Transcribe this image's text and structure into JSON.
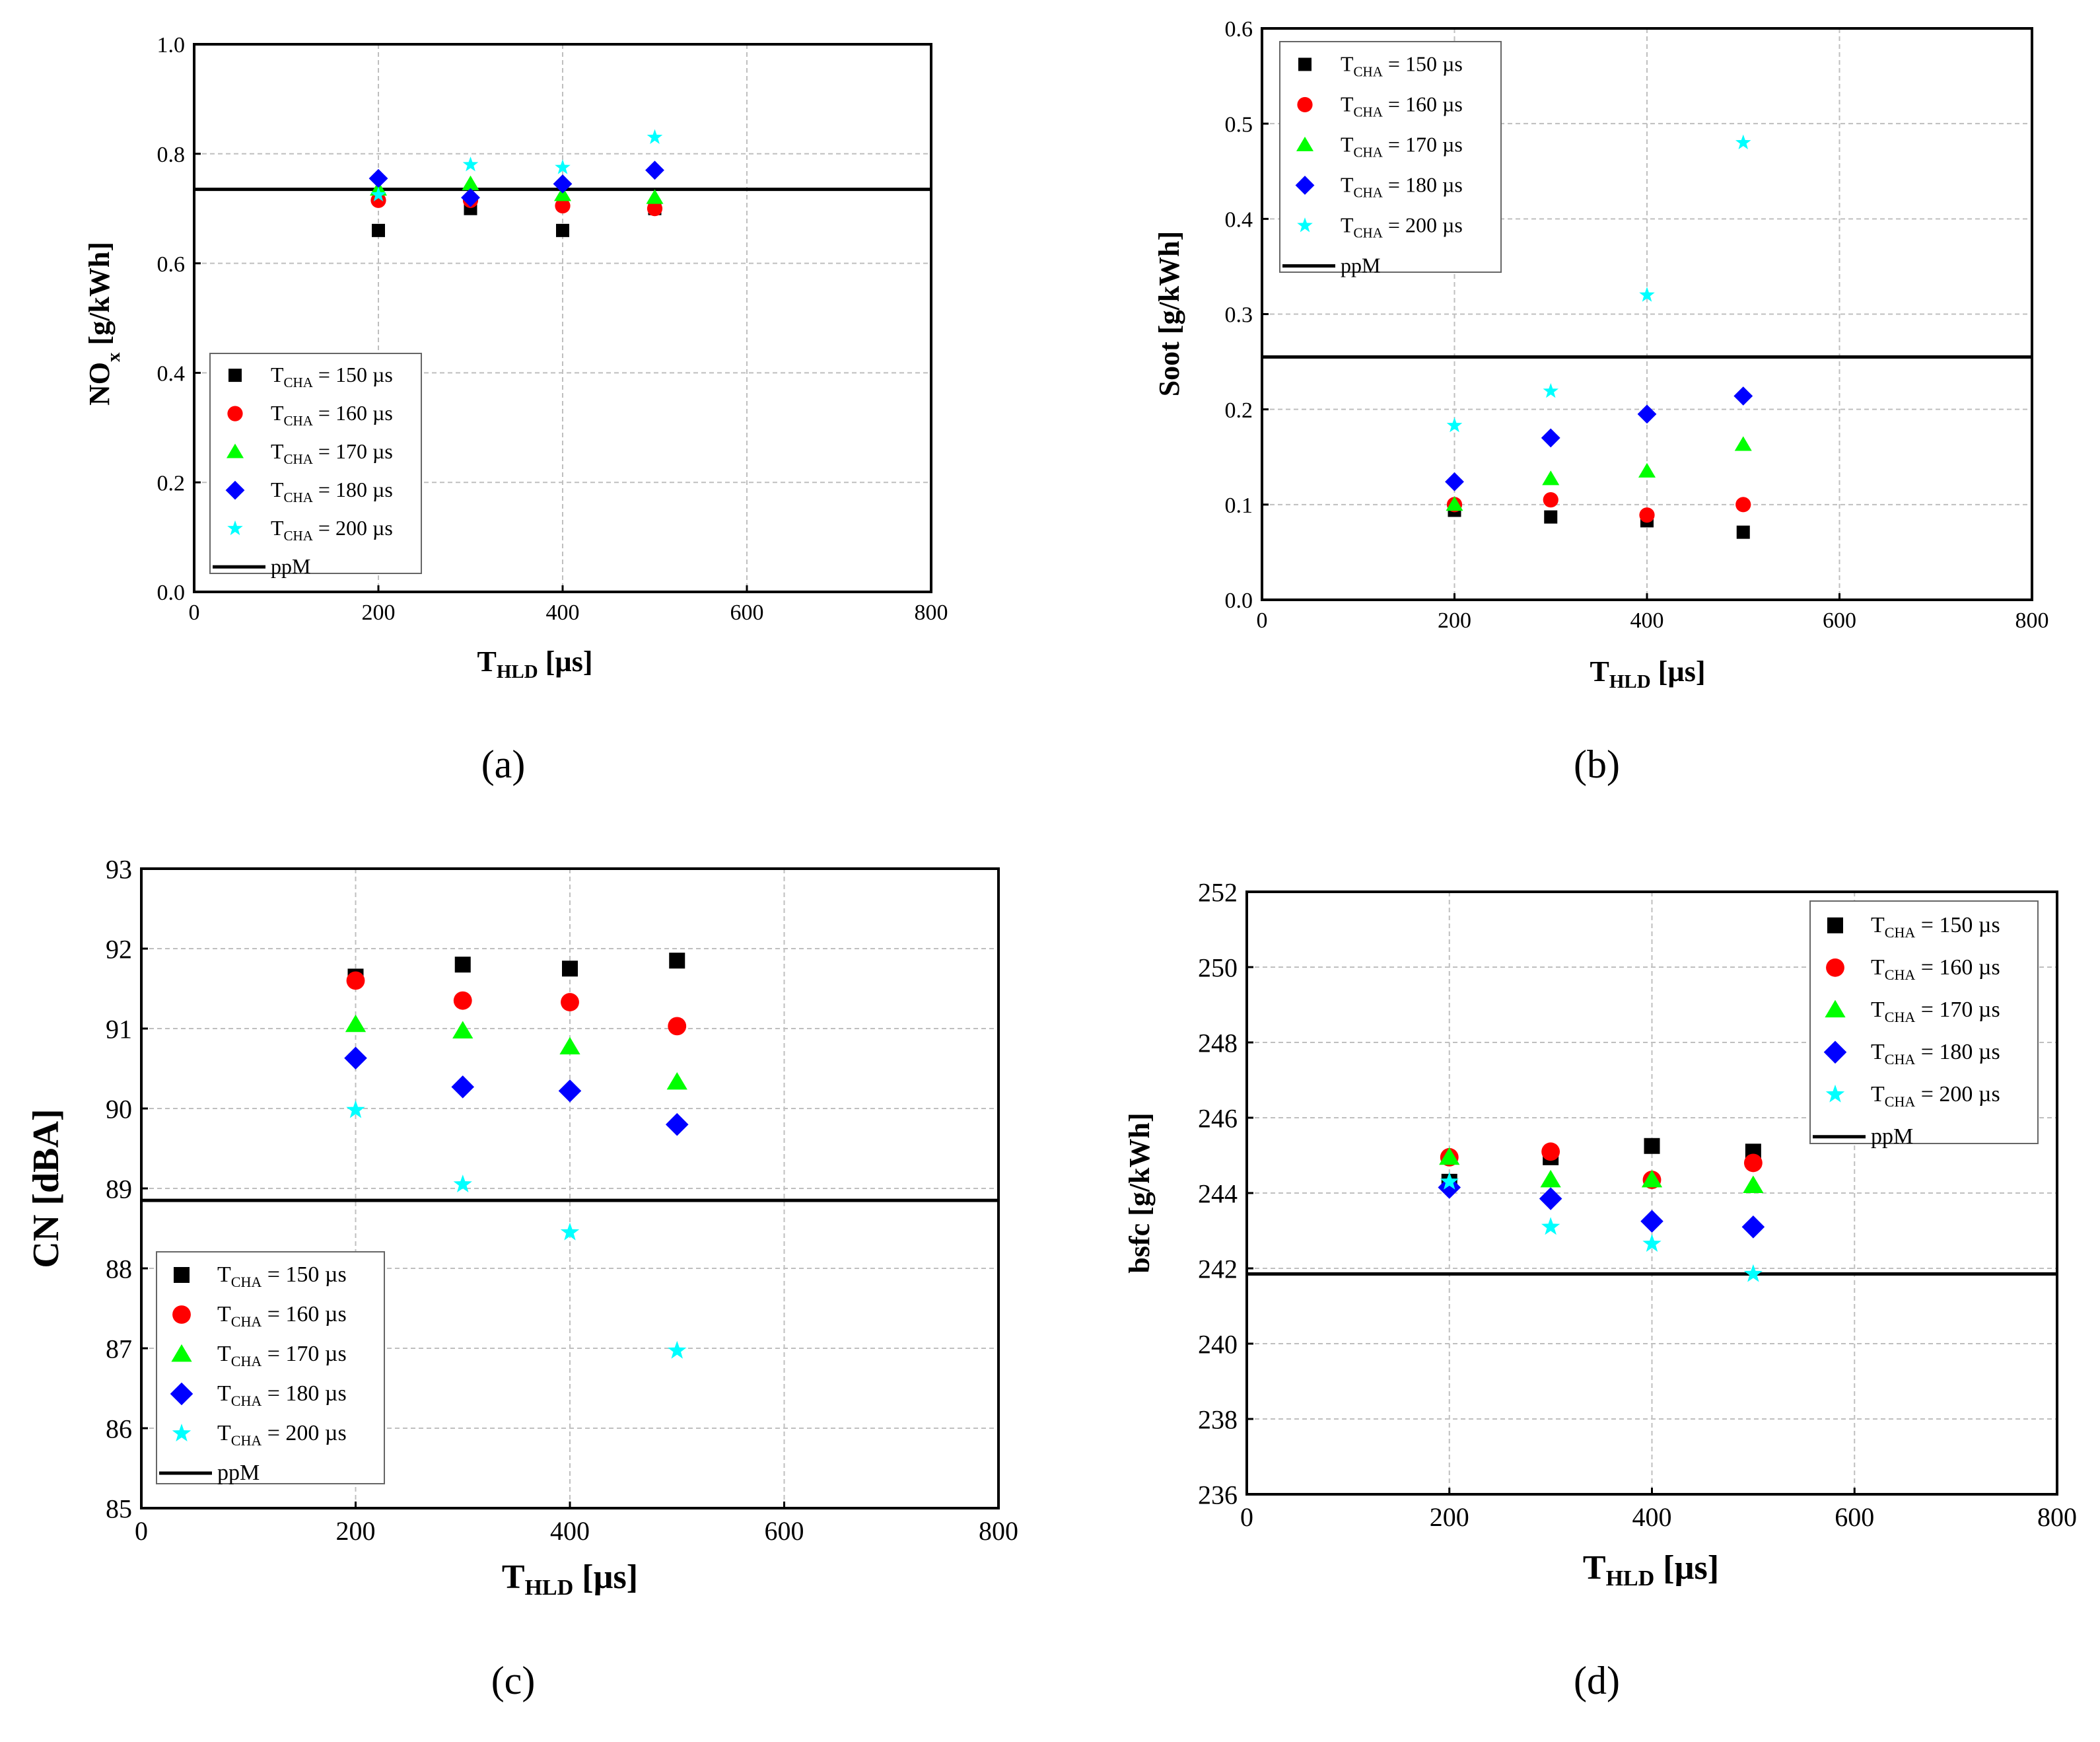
{
  "figure": {
    "legend_entries": [
      {
        "name": "T",
        "sub": "CHA",
        "suffix": " = 150 µs",
        "color": "#000000",
        "marker": "square"
      },
      {
        "name": "T",
        "sub": "CHA",
        "suffix": " = 160 µs",
        "color": "#ff0000",
        "marker": "circle"
      },
      {
        "name": "T",
        "sub": "CHA",
        "suffix": " = 170 µs",
        "color": "#00ff00",
        "marker": "triangle"
      },
      {
        "name": "T",
        "sub": "CHA",
        "suffix": " = 180 µs",
        "color": "#0000ff",
        "marker": "diamond"
      },
      {
        "name": "T",
        "sub": "CHA",
        "suffix": " = 200 µs",
        "color": "#00ffff",
        "marker": "star"
      },
      {
        "name": "ppM",
        "sub": "",
        "suffix": "",
        "color": "#000000",
        "marker": "line"
      }
    ]
  },
  "chart_data": [
    {
      "type": "scatter",
      "caption": "(a)",
      "xlabel": {
        "main": "T",
        "sub": "HLD",
        "rest": " [µs]"
      },
      "ylabel": {
        "main": "NO",
        "sub": "x",
        "rest": " [g/kWh]"
      },
      "xlim": [
        0,
        800
      ],
      "ylim": [
        0,
        1.0
      ],
      "xticks": [
        "0",
        "200",
        "400",
        "600",
        "800"
      ],
      "yticks": [
        "0.0",
        "0.2",
        "0.4",
        "0.6",
        "0.8",
        "1.0"
      ],
      "x": [
        200,
        300,
        400,
        500
      ],
      "series": [
        {
          "name": "TCHA = 150 µs",
          "values": [
            0.66,
            0.7,
            0.66,
            0.7
          ]
        },
        {
          "name": "TCHA = 160 µs",
          "values": [
            0.715,
            0.715,
            0.705,
            0.7
          ]
        },
        {
          "name": "TCHA = 170 µs",
          "values": [
            0.735,
            0.745,
            0.725,
            0.72
          ]
        },
        {
          "name": "TCHA = 180 µs",
          "values": [
            0.755,
            0.72,
            0.745,
            0.77
          ]
        },
        {
          "name": "TCHA = 200 µs",
          "values": [
            0.725,
            0.78,
            0.775,
            0.83
          ]
        }
      ],
      "reference": {
        "name": "ppM",
        "value": 0.735
      },
      "grid": true,
      "legend_position": "bottom-left"
    },
    {
      "type": "scatter",
      "caption": "(b)",
      "xlabel": {
        "main": "T",
        "sub": "HLD",
        "rest": " [µs]"
      },
      "ylabel": {
        "main": "Soot [g/kWh]",
        "sub": "",
        "rest": ""
      },
      "xlim": [
        0,
        800
      ],
      "ylim": [
        0,
        0.6
      ],
      "xticks": [
        "0",
        "200",
        "400",
        "600",
        "800"
      ],
      "yticks": [
        "0.0",
        "0.1",
        "0.2",
        "0.3",
        "0.4",
        "0.5",
        "0.6"
      ],
      "x": [
        200,
        300,
        400,
        500
      ],
      "series": [
        {
          "name": "TCHA = 150 µs",
          "values": [
            0.094,
            0.087,
            0.083,
            0.071
          ]
        },
        {
          "name": "TCHA = 160 µs",
          "values": [
            0.1,
            0.105,
            0.089,
            0.1
          ]
        },
        {
          "name": "TCHA = 170 µs",
          "values": [
            0.1,
            0.127,
            0.135,
            0.163
          ]
        },
        {
          "name": "TCHA = 180 µs",
          "values": [
            0.124,
            0.17,
            0.195,
            0.214
          ]
        },
        {
          "name": "TCHA = 200 µs",
          "values": [
            0.183,
            0.219,
            0.32,
            0.48
          ]
        }
      ],
      "reference": {
        "name": "ppM",
        "value": 0.255
      },
      "grid": true,
      "legend_position": "top-left"
    },
    {
      "type": "scatter",
      "caption": "(c)",
      "xlabel": {
        "main": "T",
        "sub": "HLD",
        "rest": " [µs]"
      },
      "ylabel": {
        "main": "CN [dBA]",
        "sub": "",
        "rest": ""
      },
      "xlim": [
        0,
        800
      ],
      "ylim": [
        85,
        93
      ],
      "xticks": [
        "0",
        "200",
        "400",
        "600",
        "800"
      ],
      "yticks": [
        "85",
        "86",
        "87",
        "88",
        "89",
        "90",
        "91",
        "92",
        "93"
      ],
      "x": [
        200,
        300,
        400,
        500
      ],
      "series": [
        {
          "name": "TCHA = 150 µs",
          "values": [
            91.65,
            91.8,
            91.75,
            91.85
          ]
        },
        {
          "name": "TCHA = 160 µs",
          "values": [
            91.6,
            91.35,
            91.33,
            91.03
          ]
        },
        {
          "name": "TCHA = 170 µs",
          "values": [
            91.05,
            90.97,
            90.77,
            90.33
          ]
        },
        {
          "name": "TCHA = 180 µs",
          "values": [
            90.63,
            90.27,
            90.22,
            89.8
          ]
        },
        {
          "name": "TCHA = 200 µs",
          "values": [
            89.98,
            89.05,
            88.45,
            86.97
          ]
        }
      ],
      "reference": {
        "name": "ppM",
        "value": 88.85
      },
      "grid": true,
      "legend_position": "bottom-left"
    },
    {
      "type": "scatter",
      "caption": "(d)",
      "xlabel": {
        "main": "T",
        "sub": "HLD",
        "rest": " [µs]"
      },
      "ylabel": {
        "main": "bsfc [g/kWh]",
        "sub": "",
        "rest": ""
      },
      "xlim": [
        0,
        800
      ],
      "ylim": [
        236,
        252
      ],
      "xticks": [
        "0",
        "200",
        "400",
        "600",
        "800"
      ],
      "yticks": [
        "236",
        "238",
        "240",
        "242",
        "244",
        "246",
        "248",
        "250",
        "252"
      ],
      "x": [
        200,
        300,
        400,
        500
      ],
      "series": [
        {
          "name": "TCHA = 150 µs",
          "values": [
            244.3,
            244.95,
            245.25,
            245.1
          ]
        },
        {
          "name": "TCHA = 160 µs",
          "values": [
            244.95,
            245.1,
            244.35,
            244.8
          ]
        },
        {
          "name": "TCHA = 170 µs",
          "values": [
            244.95,
            244.35,
            244.35,
            244.2
          ]
        },
        {
          "name": "TCHA = 180 µs",
          "values": [
            244.15,
            243.85,
            243.25,
            243.1
          ]
        },
        {
          "name": "TCHA = 200 µs",
          "values": [
            244.3,
            243.1,
            242.65,
            241.85
          ]
        }
      ],
      "reference": {
        "name": "ppM",
        "value": 241.85
      },
      "grid": true,
      "legend_position": "top-right"
    }
  ]
}
